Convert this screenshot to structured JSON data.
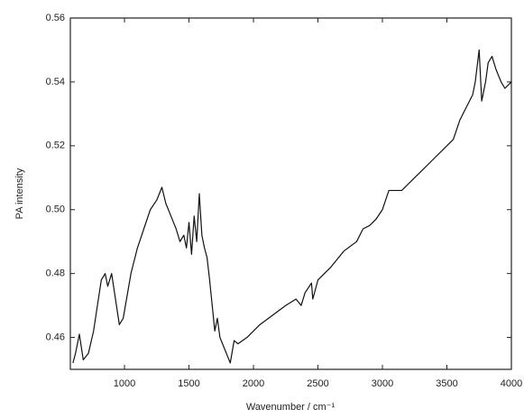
{
  "chart_data": {
    "type": "line",
    "xlabel": "Wavenumber / cm⁻¹",
    "ylabel": "PA intensity",
    "color": "#111111",
    "xlim": [
      580,
      4000
    ],
    "xticks": [
      1000,
      1500,
      2000,
      2500,
      3000,
      3500,
      4000
    ],
    "ylim": [
      0.45,
      0.56
    ],
    "yticks": [
      0.46,
      0.48,
      {
        "value": 0.5,
        "label": "0.50"
      },
      0.52,
      0.54,
      0.56
    ],
    "x": [
      600,
      620,
      650,
      680,
      720,
      760,
      790,
      820,
      850,
      870,
      900,
      930,
      960,
      990,
      1050,
      1100,
      1150,
      1200,
      1250,
      1290,
      1320,
      1360,
      1400,
      1430,
      1460,
      1480,
      1500,
      1520,
      1540,
      1560,
      1580,
      1600,
      1620,
      1640,
      1660,
      1680,
      1700,
      1720,
      1740,
      1760,
      1780,
      1800,
      1820,
      1850,
      1880,
      1950,
      2050,
      2150,
      2250,
      2330,
      2370,
      2400,
      2450,
      2460,
      2500,
      2600,
      2700,
      2800,
      2850,
      2900,
      2950,
      3000,
      3050,
      3100,
      3150,
      3200,
      3300,
      3400,
      3500,
      3550,
      3600,
      3650,
      3700,
      3720,
      3750,
      3770,
      3800,
      3820,
      3850,
      3880,
      3920,
      3950,
      4000
    ],
    "values": [
      0.452,
      0.455,
      0.461,
      0.453,
      0.455,
      0.462,
      0.47,
      0.478,
      0.48,
      0.476,
      0.48,
      0.472,
      0.464,
      0.466,
      0.48,
      0.488,
      0.494,
      0.5,
      0.503,
      0.507,
      0.502,
      0.498,
      0.494,
      0.49,
      0.492,
      0.488,
      0.496,
      0.486,
      0.498,
      0.49,
      0.505,
      0.492,
      0.488,
      0.485,
      0.478,
      0.47,
      0.462,
      0.466,
      0.46,
      0.458,
      0.456,
      0.454,
      0.452,
      0.459,
      0.458,
      0.46,
      0.464,
      0.467,
      0.47,
      0.472,
      0.47,
      0.474,
      0.477,
      0.472,
      0.478,
      0.482,
      0.487,
      0.49,
      0.494,
      0.495,
      0.497,
      0.5,
      0.506,
      0.506,
      0.506,
      0.508,
      0.512,
      0.516,
      0.52,
      0.522,
      0.528,
      0.532,
      0.536,
      0.54,
      0.55,
      0.534,
      0.54,
      0.546,
      0.548,
      0.544,
      0.54,
      0.538,
      0.54
    ]
  }
}
